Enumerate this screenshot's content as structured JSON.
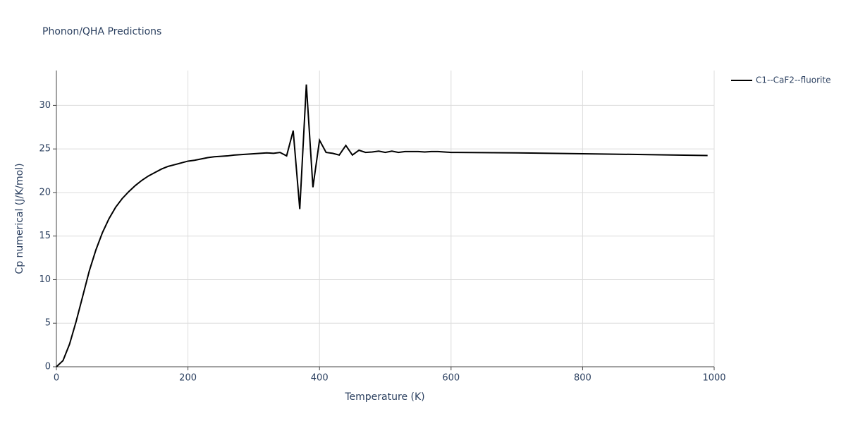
{
  "chart_data": {
    "type": "line",
    "title": "Phonon/QHA Predictions",
    "x_label": "Temperature (K)",
    "y_label": "Cp numerical (J/K/mol)",
    "x": [
      0,
      10,
      20,
      30,
      40,
      50,
      60,
      70,
      80,
      90,
      100,
      110,
      120,
      130,
      140,
      150,
      160,
      170,
      180,
      190,
      200,
      210,
      220,
      230,
      240,
      250,
      260,
      270,
      280,
      290,
      300,
      310,
      320,
      330,
      340,
      350,
      360,
      370,
      380,
      390,
      400,
      410,
      420,
      430,
      440,
      450,
      460,
      470,
      480,
      490,
      500,
      510,
      520,
      530,
      540,
      550,
      560,
      570,
      580,
      590,
      600,
      610,
      700,
      800,
      900,
      990
    ],
    "series": [
      {
        "name": "C1--CaF2--fluorite",
        "color": "#000000",
        "values": [
          0,
          0.7,
          2.6,
          5.2,
          8.1,
          11.0,
          13.4,
          15.4,
          17.0,
          18.3,
          19.3,
          20.1,
          20.8,
          21.4,
          21.9,
          22.3,
          22.7,
          23.0,
          23.2,
          23.4,
          23.6,
          23.7,
          23.85,
          24.0,
          24.1,
          24.15,
          24.2,
          24.3,
          24.35,
          24.4,
          24.45,
          24.5,
          24.55,
          24.5,
          24.6,
          24.2,
          27.1,
          18.1,
          32.4,
          20.6,
          26.0,
          24.6,
          24.5,
          24.3,
          25.4,
          24.3,
          24.85,
          24.6,
          24.65,
          24.75,
          24.6,
          24.75,
          24.6,
          24.7,
          24.7,
          24.7,
          24.65,
          24.7,
          24.7,
          24.65,
          24.6,
          24.6,
          24.55,
          24.45,
          24.35,
          24.25
        ]
      }
    ],
    "xlim": [
      0,
      1000
    ],
    "ylim": [
      0,
      34
    ],
    "xticks": [
      0,
      200,
      400,
      600,
      800,
      1000
    ],
    "yticks": [
      0,
      5,
      10,
      15,
      20,
      25,
      30
    ],
    "grid": true,
    "legend": "right"
  }
}
